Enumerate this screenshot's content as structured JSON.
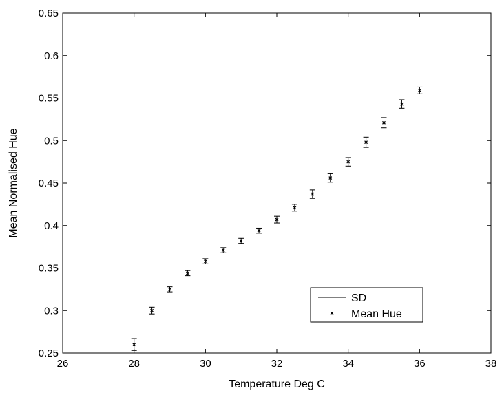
{
  "chart_data": {
    "type": "scatter",
    "xlabel": "Temperature Deg C",
    "ylabel": "Mean Normalised Hue",
    "xlim": [
      26,
      38
    ],
    "ylim": [
      0.25,
      0.65
    ],
    "xticks": [
      26,
      28,
      30,
      32,
      34,
      36,
      38
    ],
    "yticks": [
      0.25,
      0.3,
      0.35,
      0.4,
      0.45,
      0.5,
      0.55,
      0.6,
      0.65
    ],
    "xtick_labels": [
      "26",
      "28",
      "30",
      "32",
      "34",
      "36",
      "38"
    ],
    "ytick_labels": [
      "0.25",
      "0.3",
      "0.35",
      "0.4",
      "0.45",
      "0.5",
      "0.55",
      "0.6",
      "0.65"
    ],
    "grid": false,
    "legend_position": "bottom-right",
    "legend": {
      "sd_label": "SD",
      "mean_label": "Mean Hue"
    },
    "series": [
      {
        "name": "Mean Hue",
        "marker": "x",
        "x": [
          28,
          28.5,
          29,
          29.5,
          30,
          30.5,
          31,
          31.5,
          32,
          32.5,
          33,
          33.5,
          34,
          34.5,
          35,
          35.5,
          36
        ],
        "y": [
          0.26,
          0.3,
          0.325,
          0.344,
          0.358,
          0.371,
          0.382,
          0.394,
          0.407,
          0.421,
          0.437,
          0.456,
          0.475,
          0.498,
          0.521,
          0.543,
          0.559
        ],
        "sd": [
          0.007,
          0.004,
          0.003,
          0.003,
          0.003,
          0.003,
          0.003,
          0.003,
          0.004,
          0.004,
          0.005,
          0.005,
          0.005,
          0.006,
          0.006,
          0.005,
          0.004
        ]
      }
    ]
  }
}
